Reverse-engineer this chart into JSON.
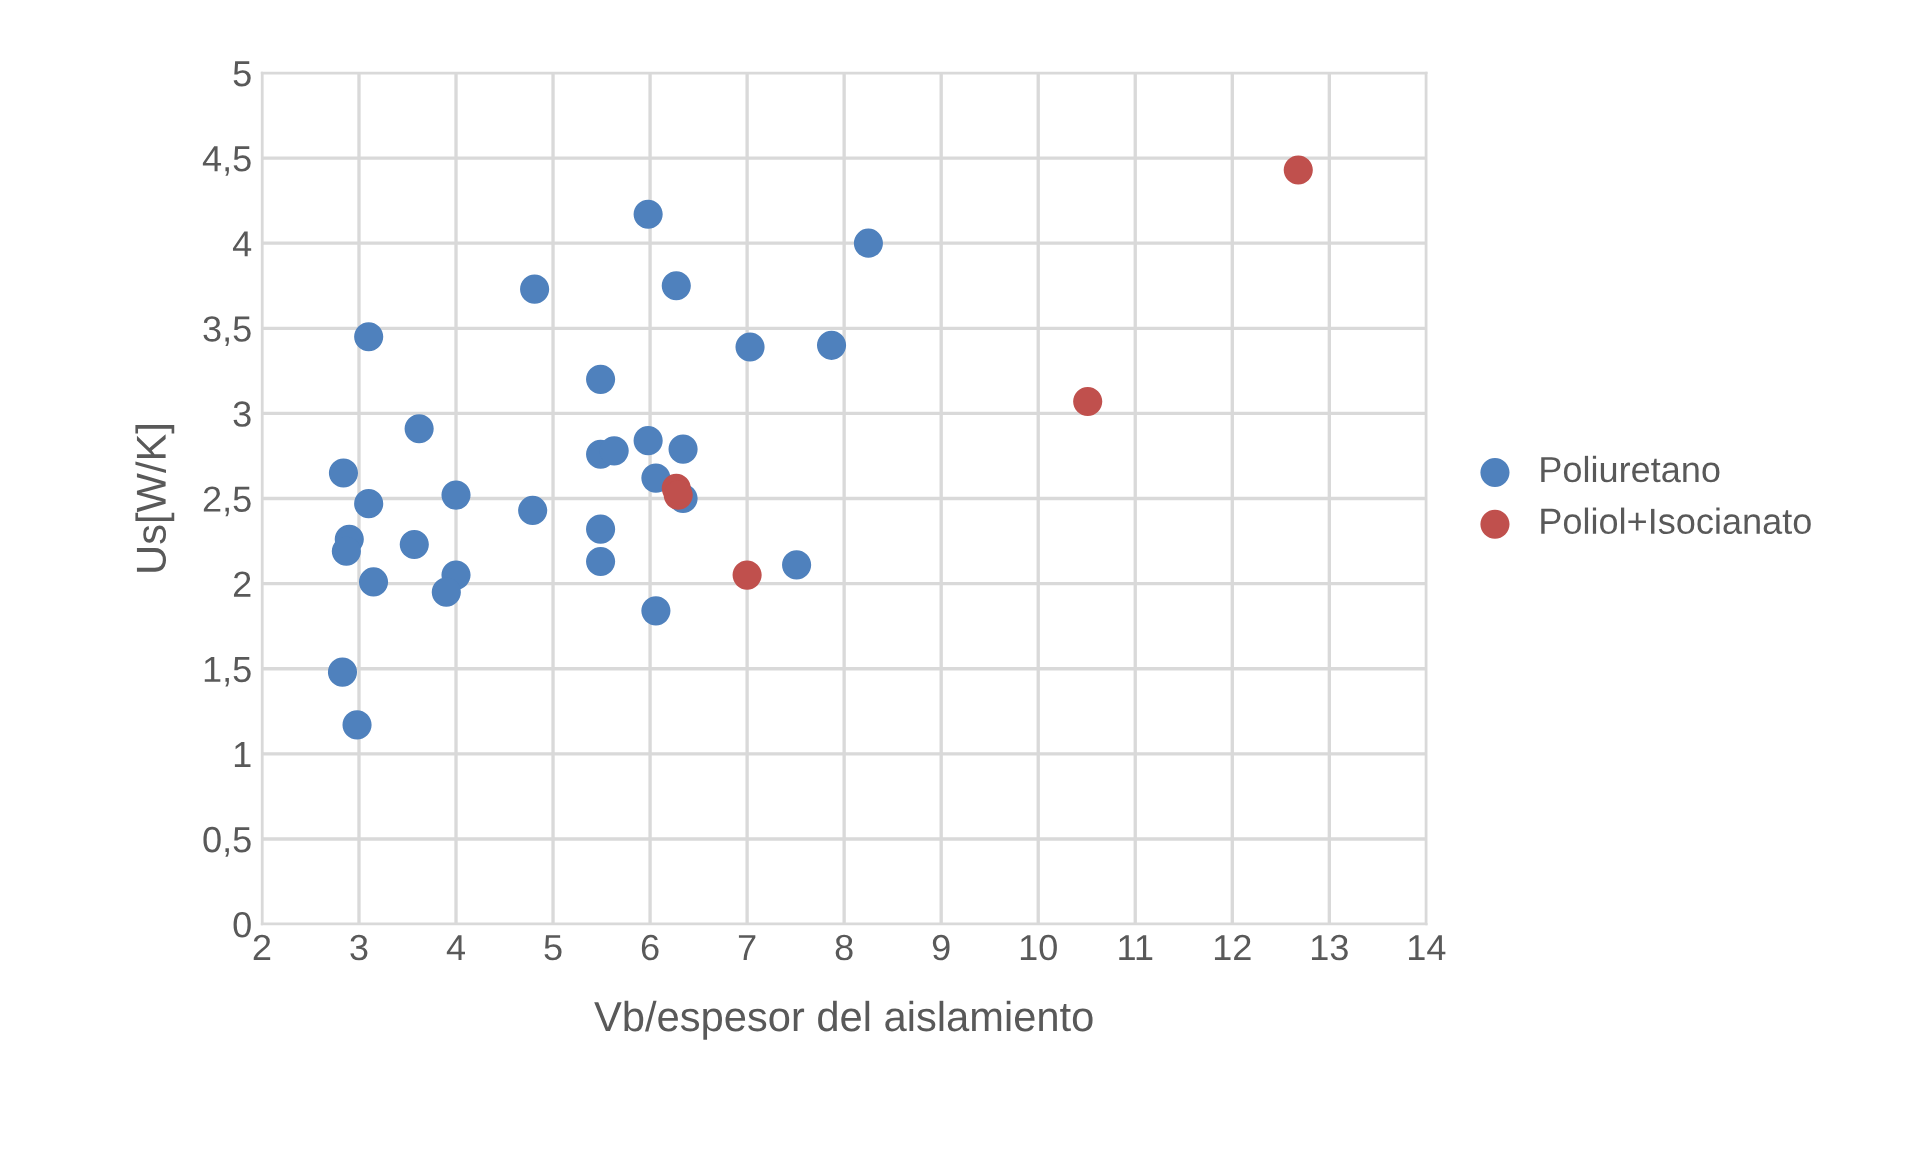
{
  "chart_data": {
    "type": "scatter",
    "xlabel": "Vb/espesor del aislamiento",
    "ylabel": "Us[W/K]",
    "xlim": [
      2,
      14
    ],
    "xticks": [
      2,
      3,
      4,
      5,
      6,
      7,
      8,
      9,
      10,
      11,
      12,
      13,
      14
    ],
    "ylim": [
      0,
      5
    ],
    "yticks": [
      0,
      {
        "value": 0.5,
        "label": "0,5"
      },
      1,
      {
        "value": 1.5,
        "label": "1,5"
      },
      2,
      {
        "value": 2.5,
        "label": "2,5"
      },
      3,
      {
        "value": 3.5,
        "label": "3,5"
      },
      4,
      {
        "value": 4.5,
        "label": "4,5"
      },
      5
    ],
    "grid": true,
    "legend": "right",
    "marker": "circle",
    "series": [
      {
        "name": "Poliuretano",
        "color": "#4f81bd",
        "x": [
          5.98,
          8.25,
          4.81,
          6.27,
          3.1,
          7.03,
          7.87,
          5.49,
          3.62,
          5.98,
          5.49,
          5.63,
          6.34,
          2.84,
          6.06,
          3.1,
          4.0,
          6.34,
          4.79,
          2.9,
          2.87,
          3.57,
          5.49,
          5.49,
          4.0,
          3.9,
          3.15,
          7.51,
          6.06,
          2.83,
          2.98
        ],
        "values": [
          4.17,
          4.0,
          3.73,
          3.75,
          3.45,
          3.39,
          3.4,
          3.2,
          2.91,
          2.84,
          2.76,
          2.78,
          2.79,
          2.65,
          2.62,
          2.47,
          2.52,
          2.5,
          2.43,
          2.26,
          2.19,
          2.23,
          2.32,
          2.13,
          2.05,
          1.95,
          2.01,
          2.11,
          1.84,
          1.48,
          1.17
        ]
      },
      {
        "name": "Poliol+Isocianato",
        "color": "#c0504d",
        "x": [
          6.27,
          6.29,
          7.0,
          10.51,
          12.68
        ],
        "values": [
          2.56,
          2.52,
          2.05,
          3.07,
          4.43
        ]
      }
    ]
  }
}
